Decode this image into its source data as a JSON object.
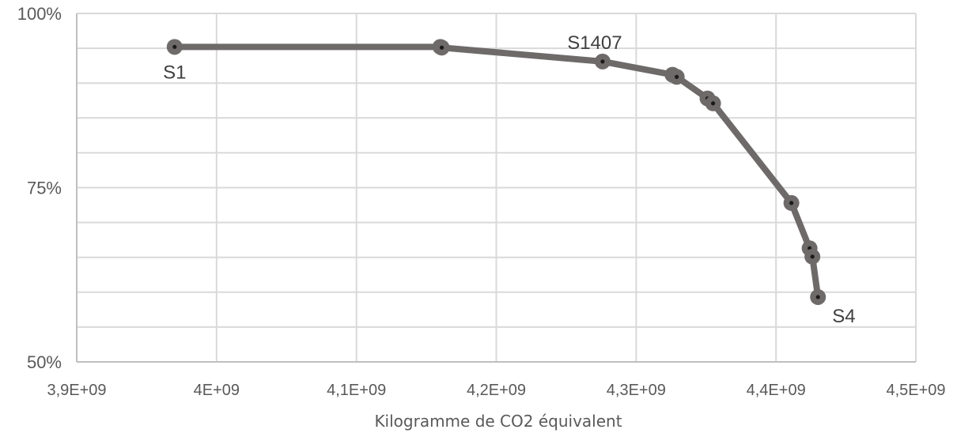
{
  "chart_data": {
    "type": "line",
    "xlabel": "Kilogramme de CO2 équivalent",
    "ylabel": "",
    "xlim": [
      3900000000,
      4500000000
    ],
    "ylim": [
      50,
      100
    ],
    "x_ticks": [
      {
        "value": 3900000000,
        "label": "3,9E+09"
      },
      {
        "value": 4000000000,
        "label": "4E+09"
      },
      {
        "value": 4100000000,
        "label": "4,1E+09"
      },
      {
        "value": 4200000000,
        "label": "4,2E+09"
      },
      {
        "value": 4300000000,
        "label": "4,3E+09"
      },
      {
        "value": 4400000000,
        "label": "4,4E+09"
      },
      {
        "value": 4500000000,
        "label": "4,5E+09"
      }
    ],
    "y_ticks": [
      {
        "value": 50,
        "label": "50%"
      },
      {
        "value": 75,
        "label": "75%"
      },
      {
        "value": 100,
        "label": "100%"
      }
    ],
    "y_gridlines": [
      50,
      55,
      60,
      65,
      70,
      75,
      80,
      85,
      90,
      95,
      100
    ],
    "grid": true,
    "series": [
      {
        "color": "#6e6a6a",
        "points": [
          {
            "x": 3970000000,
            "y": 95.2
          },
          {
            "x": 4160000000,
            "y": 95.2
          },
          {
            "x": 4161000000,
            "y": 95.1
          },
          {
            "x": 4276000000,
            "y": 93.1
          },
          {
            "x": 4326000000,
            "y": 91.2
          },
          {
            "x": 4329000000,
            "y": 90.9
          },
          {
            "x": 4351000000,
            "y": 87.8
          },
          {
            "x": 4355000000,
            "y": 87.1
          },
          {
            "x": 4411000000,
            "y": 72.8
          },
          {
            "x": 4424000000,
            "y": 66.3
          },
          {
            "x": 4426000000,
            "y": 65.1
          },
          {
            "x": 4430000000,
            "y": 59.3
          }
        ]
      }
    ],
    "annotations": [
      {
        "text": "S1",
        "x": 3970000000,
        "y": 95.2,
        "anchor": "below"
      },
      {
        "text": "S1407",
        "x": 4276000000,
        "y": 93.1,
        "anchor": "above"
      },
      {
        "text": "S4",
        "x": 4430000000,
        "y": 59.3,
        "anchor": "below-right"
      }
    ]
  }
}
